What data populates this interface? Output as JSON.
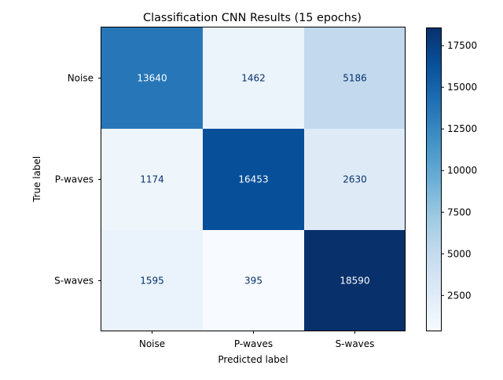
{
  "chart_data": {
    "type": "heatmap",
    "title": "Classification CNN Results (15 epochs)",
    "xlabel": "Predicted label",
    "ylabel": "True label",
    "x_categories": [
      "Noise",
      "P-waves",
      "S-waves"
    ],
    "y_categories": [
      "Noise",
      "P-waves",
      "S-waves"
    ],
    "values": [
      [
        13640,
        1462,
        5186
      ],
      [
        1174,
        16453,
        2630
      ],
      [
        1595,
        395,
        18590
      ]
    ],
    "colorscale": "Blues",
    "color_range": [
      395,
      18590
    ],
    "colorbar_ticks": [
      2500,
      5000,
      7500,
      10000,
      12500,
      15000,
      17500
    ]
  }
}
